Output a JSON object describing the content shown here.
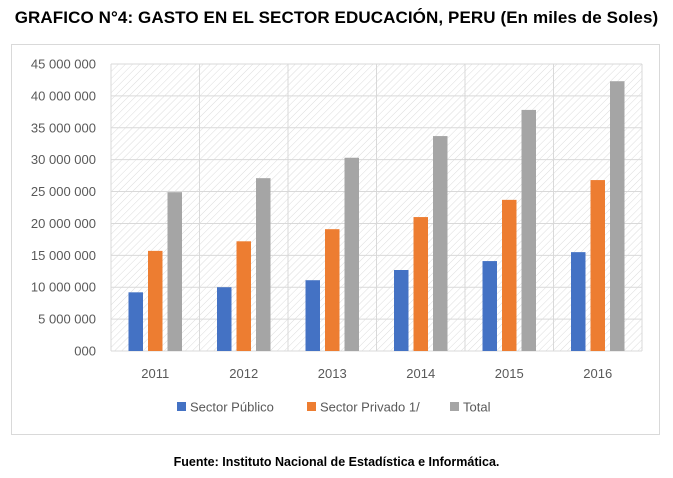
{
  "title": "GRAFICO N°4: GASTO EN EL SECTOR EDUCACIÓN, PERU (En miles de Soles)",
  "source": "Fuente: Instituto Nacional de Estadística e Informática.",
  "chart_data": {
    "type": "bar",
    "title": "GRAFICO N°4: GASTO EN EL SECTOR EDUCACIÓN, PERU (En miles de Soles)",
    "xlabel": "",
    "ylabel": "",
    "categories": [
      "2011",
      "2012",
      "2013",
      "2014",
      "2015",
      "2016"
    ],
    "series": [
      {
        "name": "Sector Público",
        "color": "#4472c4",
        "values": [
          9200000,
          10000000,
          11100000,
          12700000,
          14100000,
          15500000
        ]
      },
      {
        "name": "Sector Privado 1/",
        "color": "#ed7d31",
        "values": [
          15700000,
          17200000,
          19100000,
          21000000,
          23700000,
          26800000
        ]
      },
      {
        "name": "Total",
        "color": "#a5a5a5",
        "values": [
          24900000,
          27100000,
          30300000,
          33700000,
          37800000,
          42300000
        ]
      }
    ],
    "ylim": [
      0,
      45000000
    ],
    "yticks": [
      "000",
      "5 000 000",
      "10 000 000",
      "15 000 000",
      "20 000 000",
      "25 000 000",
      "30 000 000",
      "35 000 000",
      "40 000 000",
      "45 000 000"
    ],
    "grid": true,
    "legend_position": "bottom"
  }
}
